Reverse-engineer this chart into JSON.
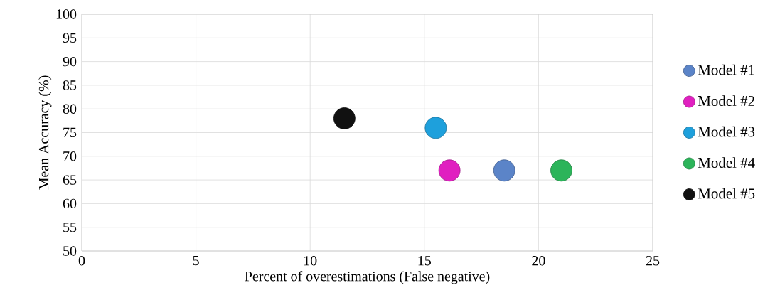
{
  "chart_data": {
    "type": "scatter",
    "xlabel": "Percent of overestimations (False negative)",
    "ylabel": "Mean Accuracy (%)",
    "xlim": [
      0,
      25
    ],
    "xticks": [
      0,
      5,
      10,
      15,
      20,
      25
    ],
    "ylim": [
      50,
      100
    ],
    "yticks": [
      50,
      55,
      60,
      65,
      70,
      75,
      80,
      85,
      90,
      95,
      100
    ],
    "grid": true,
    "legend": "right",
    "series": [
      {
        "name": "Model #1",
        "color": "#5b84c8",
        "x": [
          18.5
        ],
        "values": [
          67
        ]
      },
      {
        "name": "Model #2",
        "color": "#e020c0",
        "x": [
          16.1
        ],
        "values": [
          67
        ]
      },
      {
        "name": "Model #3",
        "color": "#1ea0dc",
        "x": [
          15.5
        ],
        "values": [
          76
        ]
      },
      {
        "name": "Model #4",
        "color": "#2cb45a",
        "x": [
          21.0
        ],
        "values": [
          67
        ]
      },
      {
        "name": "Model #5",
        "color": "#111111",
        "x": [
          11.5
        ],
        "values": [
          78
        ]
      }
    ]
  }
}
